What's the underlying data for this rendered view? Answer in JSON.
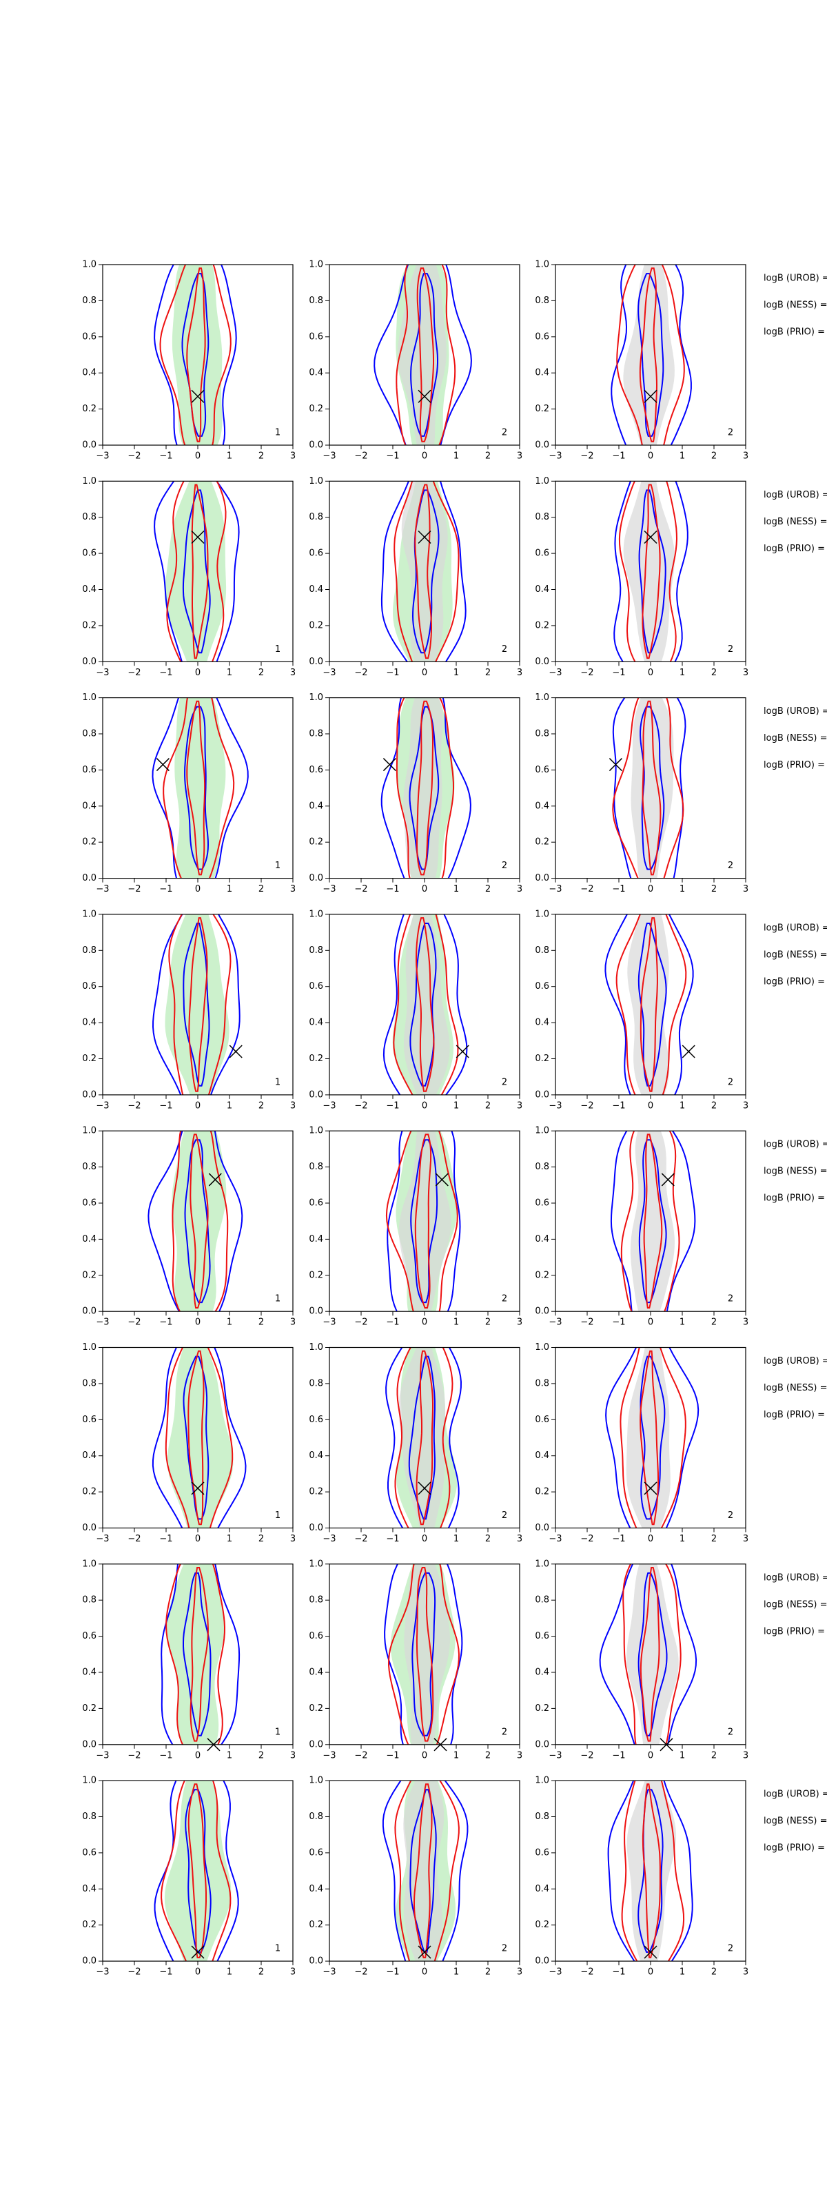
{
  "chart_data": [
    {
      "type": "contour",
      "x": [
        0
      ],
      "values": [
        0.27
      ],
      "panel_labels": [
        "1",
        "2",
        "2"
      ],
      "annotations": [
        "logB (UROB) =",
        "logB (NESS) =",
        "logB (PRIO) ="
      ],
      "xlim": [
        -3,
        3
      ],
      "ylim": [
        0,
        1
      ],
      "xticks": [
        {
          "value": -3,
          "label": "−3"
        },
        {
          "value": -2,
          "label": "−2"
        },
        {
          "value": -1,
          "label": "−1"
        },
        0,
        1,
        2,
        3
      ],
      "yticks": [
        {
          "value": 0,
          "label": "0.0"
        },
        0.2,
        0.4,
        0.6,
        0.8,
        {
          "value": 1,
          "label": "1.0"
        }
      ]
    },
    {
      "type": "contour",
      "x": [
        0
      ],
      "values": [
        0.69
      ],
      "panel_labels": [
        "1",
        "2",
        "2"
      ],
      "annotations": [
        "logB (UROB) =",
        "logB (NESS) =",
        "logB (PRIO) ="
      ],
      "xlim": [
        -3,
        3
      ],
      "ylim": [
        0,
        1
      ],
      "xticks": [
        {
          "value": -3,
          "label": "−3"
        },
        {
          "value": -2,
          "label": "−2"
        },
        {
          "value": -1,
          "label": "−1"
        },
        0,
        1,
        2,
        3
      ],
      "yticks": [
        {
          "value": 0,
          "label": "0.0"
        },
        0.2,
        0.4,
        0.6,
        0.8,
        {
          "value": 1,
          "label": "1.0"
        }
      ]
    },
    {
      "type": "contour",
      "x": [
        -1.1
      ],
      "values": [
        0.63
      ],
      "panel_labels": [
        "1",
        "2",
        "2"
      ],
      "annotations": [
        "logB (UROB) =",
        "logB (NESS) =",
        "logB (PRIO) ="
      ],
      "xlim": [
        -3,
        3
      ],
      "ylim": [
        0,
        1
      ],
      "xticks": [
        {
          "value": -3,
          "label": "−3"
        },
        {
          "value": -2,
          "label": "−2"
        },
        {
          "value": -1,
          "label": "−1"
        },
        0,
        1,
        2,
        3
      ],
      "yticks": [
        {
          "value": 0,
          "label": "0.0"
        },
        0.2,
        0.4,
        0.6,
        0.8,
        {
          "value": 1,
          "label": "1.0"
        }
      ]
    },
    {
      "type": "contour",
      "x": [
        1.2
      ],
      "values": [
        0.24
      ],
      "panel_labels": [
        "1",
        "2",
        "2"
      ],
      "annotations": [
        "logB (UROB) =",
        "logB (NESS) =",
        "logB (PRIO) ="
      ],
      "xlim": [
        -3,
        3
      ],
      "ylim": [
        0,
        1
      ],
      "xticks": [
        {
          "value": -3,
          "label": "−3"
        },
        {
          "value": -2,
          "label": "−2"
        },
        {
          "value": -1,
          "label": "−1"
        },
        0,
        1,
        2,
        3
      ],
      "yticks": [
        {
          "value": 0,
          "label": "0.0"
        },
        0.2,
        0.4,
        0.6,
        0.8,
        {
          "value": 1,
          "label": "1.0"
        }
      ]
    },
    {
      "type": "contour",
      "x": [
        0.55
      ],
      "values": [
        0.73
      ],
      "panel_labels": [
        "1",
        "2",
        "2"
      ],
      "annotations": [
        "logB (UROB) =",
        "logB (NESS) =",
        "logB (PRIO) ="
      ],
      "xlim": [
        -3,
        3
      ],
      "ylim": [
        0,
        1
      ],
      "xticks": [
        {
          "value": -3,
          "label": "−3"
        },
        {
          "value": -2,
          "label": "−2"
        },
        {
          "value": -1,
          "label": "−1"
        },
        0,
        1,
        2,
        3
      ],
      "yticks": [
        {
          "value": 0,
          "label": "0.0"
        },
        0.2,
        0.4,
        0.6,
        0.8,
        {
          "value": 1,
          "label": "1.0"
        }
      ]
    },
    {
      "type": "contour",
      "x": [
        0
      ],
      "values": [
        0.22
      ],
      "panel_labels": [
        "1",
        "2",
        "2"
      ],
      "annotations": [
        "logB (UROB) =",
        "logB (NESS) =",
        "logB (PRIO) ="
      ],
      "xlim": [
        -3,
        3
      ],
      "ylim": [
        0,
        1
      ],
      "xticks": [
        {
          "value": -3,
          "label": "−3"
        },
        {
          "value": -2,
          "label": "−2"
        },
        {
          "value": -1,
          "label": "−1"
        },
        0,
        1,
        2,
        3
      ],
      "yticks": [
        {
          "value": 0,
          "label": "0.0"
        },
        0.2,
        0.4,
        0.6,
        0.8,
        {
          "value": 1,
          "label": "1.0"
        }
      ]
    },
    {
      "type": "contour",
      "x": [
        0.5
      ],
      "values": [
        0.0
      ],
      "panel_labels": [
        "1",
        "2",
        "2"
      ],
      "annotations": [
        "logB (UROB) =",
        "logB (NESS) =",
        "logB (PRIO) ="
      ],
      "xlim": [
        -3,
        3
      ],
      "ylim": [
        0,
        1
      ],
      "xticks": [
        {
          "value": -3,
          "label": "−3"
        },
        {
          "value": -2,
          "label": "−2"
        },
        {
          "value": -1,
          "label": "−1"
        },
        0,
        1,
        2,
        3
      ],
      "yticks": [
        {
          "value": 0,
          "label": "0.0"
        },
        0.2,
        0.4,
        0.6,
        0.8,
        {
          "value": 1,
          "label": "1.0"
        }
      ]
    },
    {
      "type": "contour",
      "x": [
        0
      ],
      "values": [
        0.05
      ],
      "panel_labels": [
        "1",
        "2",
        "2"
      ],
      "annotations": [
        "logB (UROB) =",
        "logB (NESS) =",
        "logB (PRIO) ="
      ],
      "xlim": [
        -3,
        3
      ],
      "ylim": [
        0,
        1
      ],
      "xticks": [
        {
          "value": -3,
          "label": "−3"
        },
        {
          "value": -2,
          "label": "−2"
        },
        {
          "value": -1,
          "label": "−1"
        },
        0,
        1,
        2,
        3
      ],
      "yticks": [
        {
          "value": 0,
          "label": "0.0"
        },
        0.2,
        0.4,
        0.6,
        0.8,
        {
          "value": 1,
          "label": "1.0"
        }
      ]
    }
  ]
}
